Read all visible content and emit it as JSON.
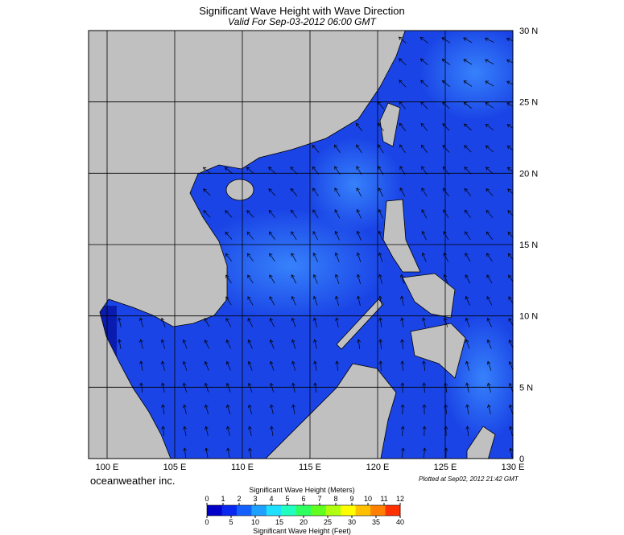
{
  "title": "Significant Wave Height with Wave Direction",
  "subtitle": "Valid For Sep-03-2012 06:00 GMT",
  "lat_ticks": [
    {
      "value": 30,
      "label": "30 N"
    },
    {
      "value": 25,
      "label": "25 N"
    },
    {
      "value": 20,
      "label": "20 N"
    },
    {
      "value": 15,
      "label": "15 N"
    },
    {
      "value": 10,
      "label": "10 N"
    },
    {
      "value": 5,
      "label": "5 N"
    },
    0
  ],
  "lon_ticks": [
    {
      "value": 100,
      "label": "100 E"
    },
    {
      "value": 105,
      "label": "105 E"
    },
    {
      "value": 110,
      "label": "110 E"
    },
    {
      "value": 115,
      "label": "115 E"
    },
    {
      "value": 120,
      "label": "120 E"
    },
    {
      "value": 125,
      "label": "125 E"
    },
    {
      "value": 130,
      "label": "130 E"
    }
  ],
  "credit": "oceanweather inc.",
  "plotted": "Plotted at Sep02, 2012 21:42 GMT",
  "colorbar": {
    "title_top": "Significant Wave Height (Meters)",
    "meters_ticks": [
      0,
      1,
      2,
      3,
      4,
      5,
      6,
      7,
      8,
      9,
      10,
      11,
      12
    ],
    "feet_ticks": [
      0,
      5,
      10,
      15,
      20,
      25,
      30,
      35,
      40
    ],
    "title_bottom": "Significant Wave Height (Feet)",
    "colors": [
      "#0000c8",
      "#0a28f0",
      "#1460ff",
      "#1ea0ff",
      "#20e0ff",
      "#20ffc0",
      "#30ff60",
      "#60ff20",
      "#b0ff10",
      "#ffff00",
      "#ffc000",
      "#ff8000",
      "#ff3000"
    ]
  }
}
